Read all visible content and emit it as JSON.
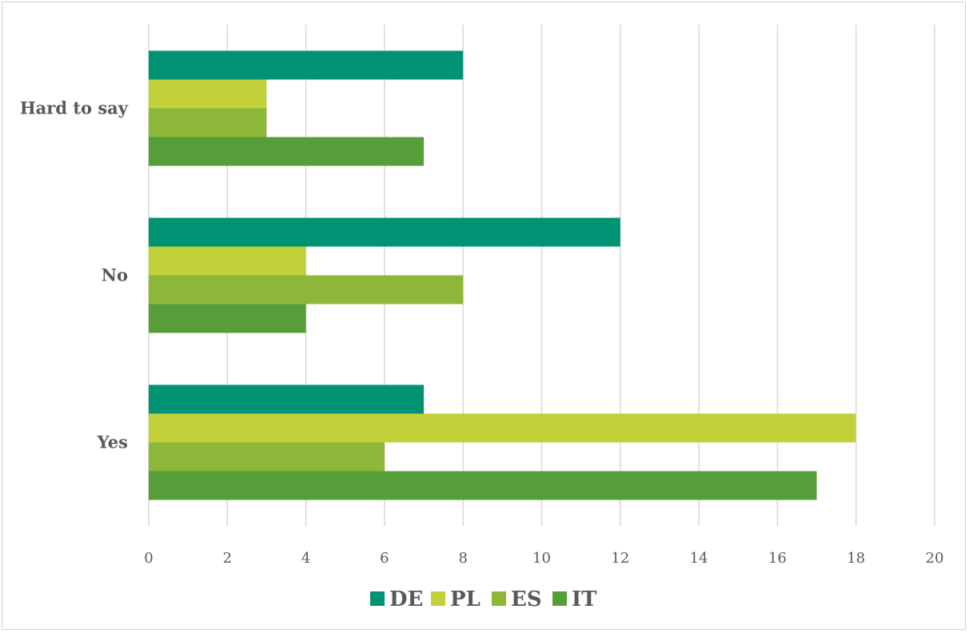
{
  "chart_data": {
    "type": "bar",
    "orientation": "horizontal",
    "categories": [
      "Hard to say",
      "No",
      "Yes"
    ],
    "series": [
      {
        "name": "DE",
        "color": "#009373",
        "values": [
          8,
          12,
          7
        ]
      },
      {
        "name": "PL",
        "color": "#C2D13A",
        "values": [
          3,
          4,
          18
        ]
      },
      {
        "name": "ES",
        "color": "#8DB739",
        "values": [
          3,
          8,
          6
        ]
      },
      {
        "name": "IT",
        "color": "#569E3A",
        "values": [
          7,
          4,
          17
        ]
      }
    ],
    "xlim": [
      0,
      20
    ],
    "xticks": [
      "0",
      "2",
      "4",
      "6",
      "8",
      "10",
      "12",
      "14",
      "16",
      "18",
      "20"
    ],
    "grid": "vertical",
    "legend_position": "bottom"
  }
}
